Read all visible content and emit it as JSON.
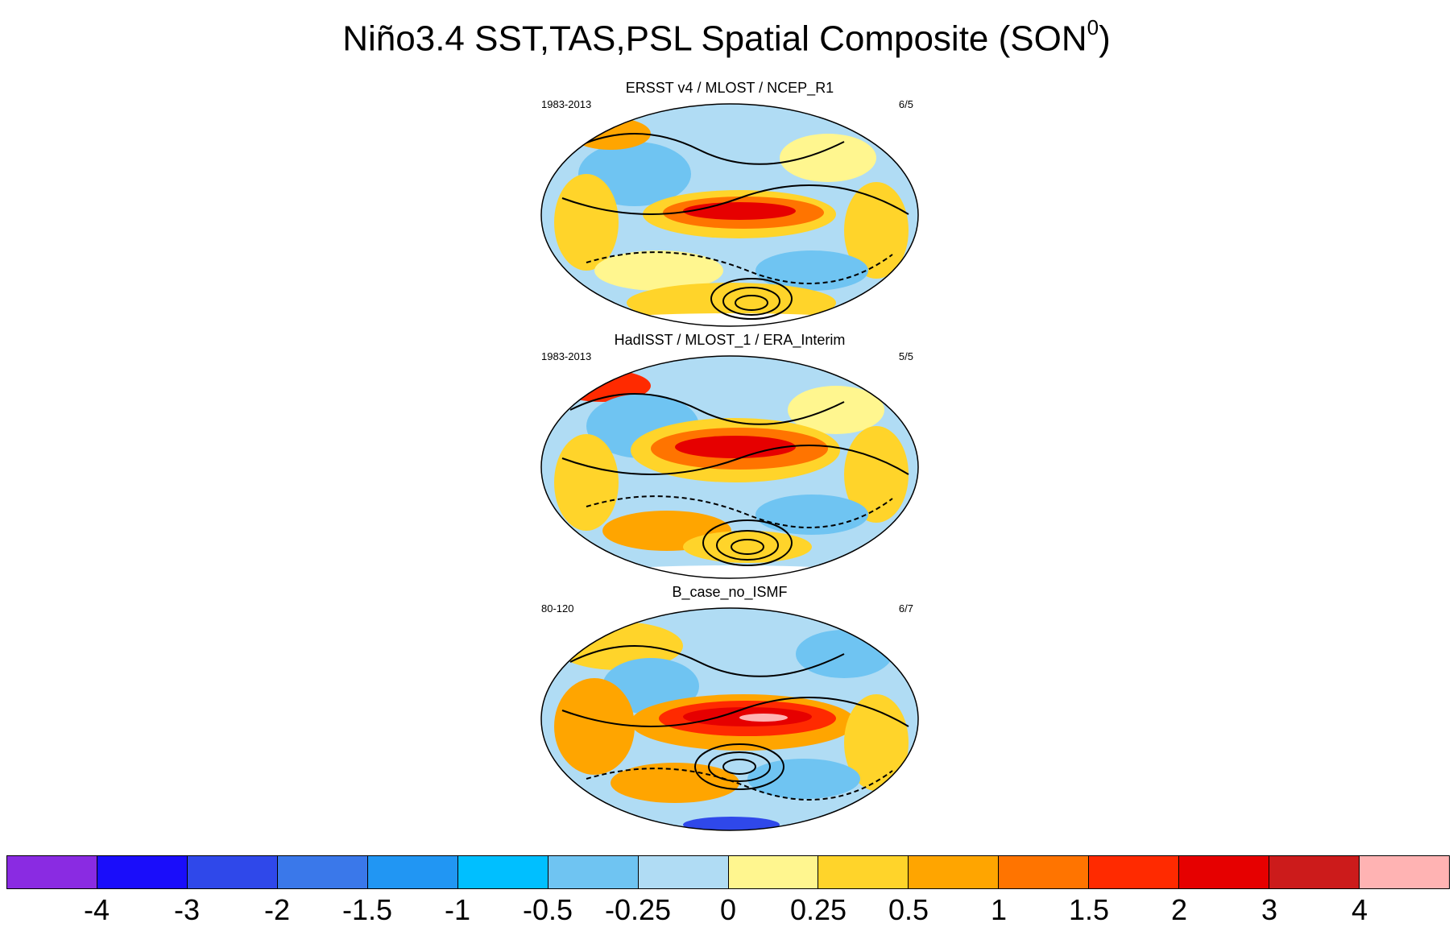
{
  "title": {
    "main": "Niño3.4 SST,TAS,PSL Spatial Composite (SON",
    "superscript": "0",
    "close": ")"
  },
  "panels": [
    {
      "title": "ERSST v4 / MLOST / NCEP_R1",
      "period": "1983-2013",
      "count": "6/5"
    },
    {
      "title": "HadISST / MLOST_1 / ERA_Interim",
      "period": "1983-2013",
      "count": "5/5"
    },
    {
      "title": "B_case_no_ISMF",
      "period": "80-120",
      "count": "6/7"
    }
  ],
  "colorbar": {
    "colors": [
      "#8a2be2",
      "#1a0dfa",
      "#2f48ea",
      "#3a78ea",
      "#2196f3",
      "#00bfff",
      "#6fc4f2",
      "#b0dcf4",
      "#fff68f",
      "#ffd42a",
      "#ffa500",
      "#ff7400",
      "#ff2a00",
      "#e60000",
      "#cc1b1b",
      "#ffb3b3"
    ],
    "labels": [
      "-4",
      "-3",
      "-2",
      "-1.5",
      "-1",
      "-0.5",
      "-0.25",
      "0",
      "0.25",
      "0.5",
      "1",
      "1.5",
      "2",
      "3",
      "4"
    ]
  }
}
